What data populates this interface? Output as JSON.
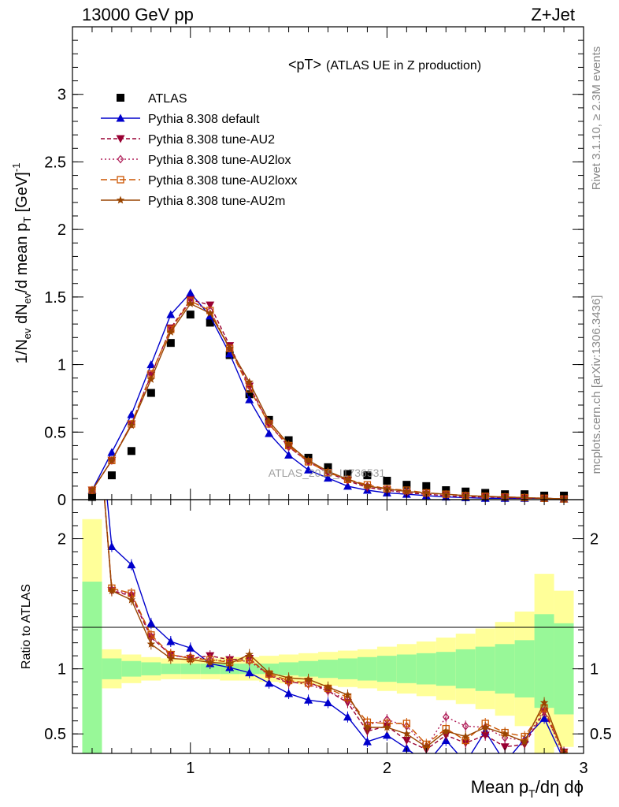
{
  "header": {
    "left": "13000 GeV pp",
    "right": "Z+Jet"
  },
  "plot_title": "<pT>",
  "plot_subtitle": "(ATLAS UE in Z production)",
  "side_labels": {
    "rivet": "Rivet 3.1.10, ≥ 2.3M events",
    "mcplots": "mcplots.cern.ch [arXiv:1306.3436]"
  },
  "watermark": "ATLAS_2019_I1736531",
  "colors": {
    "data": "#000000",
    "default": "#0000cc",
    "au2": "#990033",
    "au2lox": "#b0205a",
    "au2loxx": "#cc5500",
    "au2m": "#994400",
    "band_inner": "#98f898",
    "band_outer": "#ffff99"
  },
  "chart_data": [
    {
      "type": "line",
      "ylabel": "1/N_ev dN_ev/d mean p_T [GeV]^-1",
      "xlim": [
        0.4,
        3.0
      ],
      "ylim": [
        0,
        3.5
      ],
      "yticks": [
        "0",
        "0.5",
        "1",
        "1.5",
        "2",
        "2.5",
        "3"
      ],
      "x": [
        0.5,
        0.6,
        0.7,
        0.8,
        0.9,
        1.0,
        1.1,
        1.2,
        1.3,
        1.4,
        1.5,
        1.6,
        1.7,
        1.8,
        1.9,
        2.0,
        2.1,
        2.2,
        2.3,
        2.4,
        2.5,
        2.6,
        2.7,
        2.8,
        2.9
      ],
      "legend": [
        "ATLAS",
        "Pythia 8.308 default",
        "Pythia 8.308 tune-AU2",
        "Pythia 8.308 tune-AU2lox",
        "Pythia 8.308 tune-AU2loxx",
        "Pythia 8.308 tune-AU2m"
      ],
      "series": [
        {
          "name": "ATLAS",
          "key": "data",
          "marker": "square",
          "values": [
            0.02,
            0.18,
            0.36,
            0.79,
            1.16,
            1.37,
            1.31,
            1.07,
            0.78,
            0.59,
            0.44,
            0.31,
            0.24,
            0.19,
            0.18,
            0.14,
            0.11,
            0.1,
            0.07,
            0.06,
            0.05,
            0.04,
            0.04,
            0.03,
            0.03
          ]
        },
        {
          "name": "Pythia 8.308 default",
          "key": "default",
          "marker": "triangle",
          "dash": "",
          "values": [
            0.07,
            0.35,
            0.63,
            1.0,
            1.37,
            1.53,
            1.36,
            1.08,
            0.74,
            0.49,
            0.33,
            0.22,
            0.16,
            0.1,
            0.07,
            0.05,
            0.04,
            0.03,
            0.02,
            0.015,
            0.01,
            0.01,
            0.01,
            0.01,
            0.005
          ]
        },
        {
          "name": "Pythia 8.308 tune-AU2",
          "key": "au2",
          "marker": "triangle-down",
          "dash": "5,3",
          "values": [
            0.07,
            0.29,
            0.56,
            0.92,
            1.27,
            1.48,
            1.44,
            1.14,
            0.84,
            0.56,
            0.39,
            0.28,
            0.2,
            0.14,
            0.09,
            0.07,
            0.05,
            0.04,
            0.03,
            0.02,
            0.02,
            0.015,
            0.01,
            0.01,
            0.005
          ]
        },
        {
          "name": "Pythia 8.308 tune-AU2lox",
          "key": "au2lox",
          "marker": "diamond",
          "dash": "2,3",
          "values": [
            0.07,
            0.29,
            0.56,
            0.93,
            1.26,
            1.47,
            1.4,
            1.12,
            0.84,
            0.56,
            0.39,
            0.28,
            0.2,
            0.15,
            0.1,
            0.08,
            0.06,
            0.05,
            0.04,
            0.03,
            0.02,
            0.02,
            0.015,
            0.01,
            0.005
          ]
        },
        {
          "name": "Pythia 8.308 tune-AU2loxx",
          "key": "au2loxx",
          "marker": "square-open",
          "dash": "8,4",
          "values": [
            0.07,
            0.29,
            0.56,
            0.93,
            1.26,
            1.47,
            1.4,
            1.12,
            0.82,
            0.56,
            0.4,
            0.28,
            0.2,
            0.15,
            0.11,
            0.08,
            0.07,
            0.05,
            0.04,
            0.03,
            0.025,
            0.02,
            0.015,
            0.01,
            0.005
          ]
        },
        {
          "name": "Pythia 8.308 tune-AU2m",
          "key": "au2m",
          "marker": "star",
          "dash": "",
          "values": [
            0.07,
            0.29,
            0.55,
            0.89,
            1.24,
            1.45,
            1.38,
            1.12,
            0.87,
            0.58,
            0.41,
            0.29,
            0.21,
            0.15,
            0.1,
            0.08,
            0.06,
            0.05,
            0.04,
            0.03,
            0.025,
            0.02,
            0.015,
            0.01,
            0.005
          ]
        }
      ]
    },
    {
      "type": "line",
      "ylabel": "Ratio to ATLAS",
      "xlabel": "Mean p_T/dη dφ",
      "xlim": [
        0.4,
        3.0
      ],
      "ylim": [
        0.35,
        2.3
      ],
      "xticks": [
        "1",
        "2",
        "3"
      ],
      "yticks": [
        "0.5",
        "1",
        "2"
      ],
      "band_edges": [
        0.45,
        0.55,
        0.65,
        0.75,
        0.85,
        0.95,
        1.05,
        1.15,
        1.25,
        1.35,
        1.45,
        1.55,
        1.65,
        1.75,
        1.85,
        1.95,
        2.05,
        2.15,
        2.25,
        2.35,
        2.45,
        2.55,
        2.65,
        2.75,
        2.85,
        2.95
      ],
      "band_inner_upper": [
        1.67,
        1.08,
        1.06,
        1.05,
        1.04,
        1.04,
        1.04,
        1.04,
        1.04,
        1.04,
        1.05,
        1.06,
        1.07,
        1.08,
        1.09,
        1.1,
        1.11,
        1.12,
        1.13,
        1.15,
        1.17,
        1.19,
        1.22,
        1.42,
        1.35
      ],
      "band_inner_lower": [
        0.33,
        0.92,
        0.94,
        0.95,
        0.96,
        0.96,
        0.96,
        0.96,
        0.96,
        0.96,
        0.95,
        0.94,
        0.93,
        0.92,
        0.91,
        0.9,
        0.89,
        0.88,
        0.87,
        0.85,
        0.83,
        0.81,
        0.78,
        0.7,
        0.65
      ],
      "band_outer_upper": [
        2.15,
        1.15,
        1.11,
        1.09,
        1.08,
        1.08,
        1.08,
        1.09,
        1.09,
        1.1,
        1.11,
        1.12,
        1.13,
        1.14,
        1.15,
        1.17,
        1.19,
        1.21,
        1.24,
        1.27,
        1.31,
        1.36,
        1.44,
        1.73,
        1.6
      ],
      "band_outer_lower": [
        0.33,
        0.85,
        0.89,
        0.91,
        0.92,
        0.92,
        0.92,
        0.91,
        0.91,
        0.9,
        0.89,
        0.88,
        0.87,
        0.86,
        0.85,
        0.83,
        0.81,
        0.79,
        0.76,
        0.73,
        0.69,
        0.64,
        0.56,
        0.35,
        0.4
      ],
      "series": [
        {
          "name": "Pythia 8.308 default",
          "key": "default",
          "marker": "triangle",
          "dash": "",
          "values": [
            3.5,
            1.94,
            1.8,
            1.35,
            1.21,
            1.16,
            1.04,
            1.01,
            0.97,
            0.89,
            0.81,
            0.76,
            0.74,
            0.63,
            0.44,
            0.49,
            0.39,
            0.27,
            0.45,
            0.28,
            0.52,
            0.28,
            0.46,
            0.62,
            0.3
          ]
        },
        {
          "name": "Pythia 8.308 tune-AU2",
          "key": "au2",
          "marker": "triangle-down",
          "dash": "5,3",
          "values": [
            3.5,
            1.6,
            1.56,
            1.24,
            1.11,
            1.08,
            1.1,
            1.07,
            1.08,
            0.95,
            0.89,
            0.9,
            0.83,
            0.74,
            0.52,
            0.56,
            0.45,
            0.38,
            0.49,
            0.43,
            0.49,
            0.4,
            0.42,
            0.67,
            0.36
          ]
        },
        {
          "name": "Pythia 8.308 tune-AU2lox",
          "key": "au2lox",
          "marker": "diamond",
          "dash": "2,3",
          "values": [
            3.5,
            1.61,
            1.57,
            1.25,
            1.1,
            1.09,
            1.07,
            1.06,
            1.06,
            0.95,
            0.9,
            0.88,
            0.83,
            0.76,
            0.57,
            0.61,
            0.56,
            0.4,
            0.63,
            0.56,
            0.55,
            0.47,
            0.45,
            0.68,
            0.33
          ]
        },
        {
          "name": "Pythia 8.308 tune-AU2loxx",
          "key": "au2loxx",
          "marker": "square-open",
          "dash": "8,4",
          "values": [
            3.5,
            1.62,
            1.58,
            1.26,
            1.11,
            1.08,
            1.07,
            1.05,
            1.07,
            0.96,
            0.91,
            0.89,
            0.85,
            0.78,
            0.59,
            0.58,
            0.58,
            0.42,
            0.54,
            0.45,
            0.58,
            0.51,
            0.48,
            0.7,
            0.35
          ]
        },
        {
          "name": "Pythia 8.308 tune-AU2m",
          "key": "au2m",
          "marker": "star",
          "dash": "",
          "values": [
            3.5,
            1.6,
            1.53,
            1.19,
            1.08,
            1.07,
            1.05,
            1.04,
            1.11,
            0.97,
            0.93,
            0.92,
            0.86,
            0.8,
            0.55,
            0.55,
            0.5,
            0.4,
            0.52,
            0.48,
            0.55,
            0.5,
            0.44,
            0.74,
            0.35
          ]
        }
      ]
    }
  ]
}
